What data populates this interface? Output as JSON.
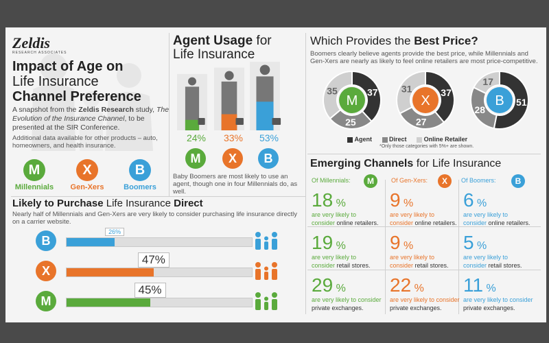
{
  "brand": {
    "name": "Zeldis",
    "tagline": "RESEARCH ASSOCIATES"
  },
  "colors": {
    "green": "#5aaa3c",
    "orange": "#e8742a",
    "blue": "#3aa0d8",
    "dark": "#333333",
    "mid": "#888888",
    "light": "#cfcfcf"
  },
  "intro": {
    "title_line1": "Impact of Age on",
    "title_line2": "Life Insurance",
    "title_line3": "Channel Preference",
    "desc_pre": "A snapshot from the ",
    "desc_brand": "Zeldis Research",
    "desc_mid": " study, ",
    "desc_study": "The Evolution of the Insurance Channel",
    "desc_post": ", to be presented at the SIR Conference.",
    "note": "Additional data available for other products – auto, homeowners, and health insurance."
  },
  "generations": [
    {
      "letter": "M",
      "label": "Millennials"
    },
    {
      "letter": "X",
      "label": "Gen-Xers"
    },
    {
      "letter": "B",
      "label": "Boomers"
    }
  ],
  "agent_usage": {
    "title_bold": "Agent Usage",
    "title_rest": " for",
    "title_line2": "Life Insurance",
    "note": "Baby Boomers are most likely to use an agent, though one in four Millennials do, as well.",
    "icon_name": "person-with-briefcase-icon"
  },
  "best_price": {
    "title_pre": "Which Provides the ",
    "title_bold": "Best Price?",
    "desc": "Boomers clearly believe agents provide the best price, while Millennials and Gen-Xers are nearly as likely to feel online retailers are most price-competitive.",
    "footnote": "*Only those categories with 5%+ are shown."
  },
  "likely_purchase": {
    "title_bold1": "Likely to Purchase",
    "title_mid": " Life Insurance ",
    "title_bold2": "Direct",
    "desc": "Nearly half of Millennials and Gen-Xers are very likely to consider purchasing life insurance directly on a carrier website.",
    "icon_name": "family-icon"
  },
  "emerging": {
    "title_bold": "Emerging Channels",
    "title_rest": " for Life Insurance",
    "of_labels": [
      "Of Millennials:",
      "Of Gen-Xers:",
      "Of Boomers:"
    ],
    "pct_symbol": "%",
    "rows": [
      {
        "line1": "are very likely to",
        "line2_pre": "consider ",
        "line2_key": "online retailers."
      },
      {
        "line1": "are very likely to",
        "line2_pre": "consider ",
        "line2_key": "retail stores."
      },
      {
        "line1": "are very likely to consider",
        "line2_pre": "",
        "line2_key": "private exchanges."
      }
    ]
  },
  "chart_data": [
    {
      "type": "bar",
      "title": "Agent Usage for Life Insurance",
      "categories": [
        "Millennials",
        "Gen-Xers",
        "Boomers"
      ],
      "values": [
        24,
        33,
        53
      ],
      "labels": [
        "24%",
        "33%",
        "53%"
      ]
    },
    {
      "type": "pie",
      "title": "Which Provides the Best Price?",
      "legend": [
        "Agent",
        "Direct",
        "Online Retailer"
      ],
      "legend_colors": [
        "#333333",
        "#888888",
        "#cfcfcf"
      ],
      "series": [
        {
          "letter": "M",
          "values": [
            37,
            25,
            35
          ]
        },
        {
          "letter": "X",
          "values": [
            37,
            27,
            31
          ]
        },
        {
          "letter": "B",
          "values": [
            51,
            28,
            17
          ]
        }
      ]
    },
    {
      "type": "bar",
      "title": "Likely to Purchase Life Insurance Direct",
      "categories": [
        "B",
        "X",
        "M"
      ],
      "values": [
        26,
        47,
        45
      ],
      "labels": [
        "26%",
        "47%",
        "45%"
      ]
    },
    {
      "type": "table",
      "title": "Emerging Channels for Life Insurance",
      "columns": [
        "Millennials",
        "Gen-Xers",
        "Boomers"
      ],
      "rows": [
        "online retailers",
        "retail stores",
        "private exchanges"
      ],
      "values": [
        [
          18,
          9,
          6
        ],
        [
          19,
          9,
          5
        ],
        [
          29,
          22,
          11
        ]
      ]
    }
  ]
}
